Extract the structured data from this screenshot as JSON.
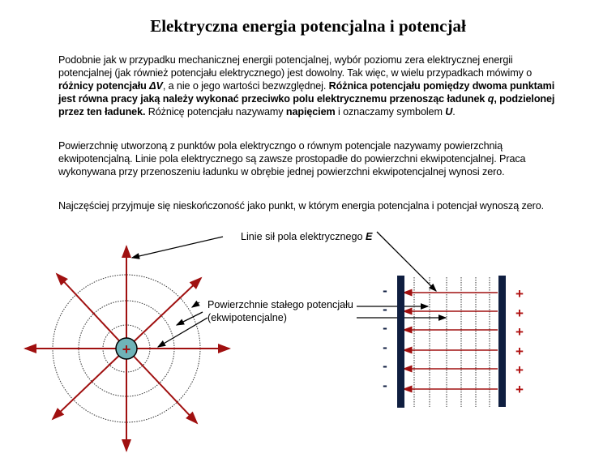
{
  "title": "Elektryczna energia potencjalna i potencjał",
  "paragraph1": {
    "t1": "Podobnie jak w przypadku mechanicznej energii potencjalnej, wybór poziomu zera elektrycznej energii potencjalnej (jak również potencjału elektrycznego) jest dowolny. Tak więc, w wielu przypadkach mówimy o ",
    "b1": "różnicy potencjału ",
    "sym_dv": "ΔV",
    "t2": ", a nie o jego wartości bezwzględnej. ",
    "b2": "Różnica potencjału pomiędzy dwoma punktami jest równa pracy jaką należy wykonać przeciwko polu elektrycznemu przenosząc ładunek ",
    "sym_q": "q",
    "b3": ", podzielonej przez ten ładunek.",
    "t3": " Różnicę potencjału nazywamy ",
    "b4": "napięciem",
    "t4": " i oznaczamy symbolem ",
    "sym_u": "U",
    "t5": "."
  },
  "paragraph2": "Powierzchnię utworzoną z punktów pola elektryczngo o równym potencjale nazywamy powierzchnią ekwipotencjalną. Linie pola elektrycznego są zawsze prostopadłe do powierzchni ekwipotencjalnej. Praca wykonywana przy przenoszeniu ładunku w obrębie jednej powierzchni ekwipotencjalnej wynosi zero.",
  "paragraph3": "Najczęściej przyjmuje się nieskończoność jako punkt, w którym energia potencjalna i potencjał wynoszą zero.",
  "diagram": {
    "field_lines_label": "Linie sił pola elektrycznego ",
    "field_symbol": "E",
    "equipotential_label_1": "Powierzchnie stałego potencjału",
    "equipotential_label_2": "(ekwipotencjalne)",
    "point_charge_sign": "+",
    "negative_plate_signs": [
      "-",
      "-",
      "-",
      "-",
      "-",
      "-"
    ],
    "positive_plate_signs": [
      "+",
      "+",
      "+",
      "+",
      "+",
      "+"
    ],
    "colors": {
      "field_line": "#a01010",
      "charge_fill": "#6fb3b8",
      "plate": "#0f1e40",
      "plus": "#b01010"
    }
  }
}
